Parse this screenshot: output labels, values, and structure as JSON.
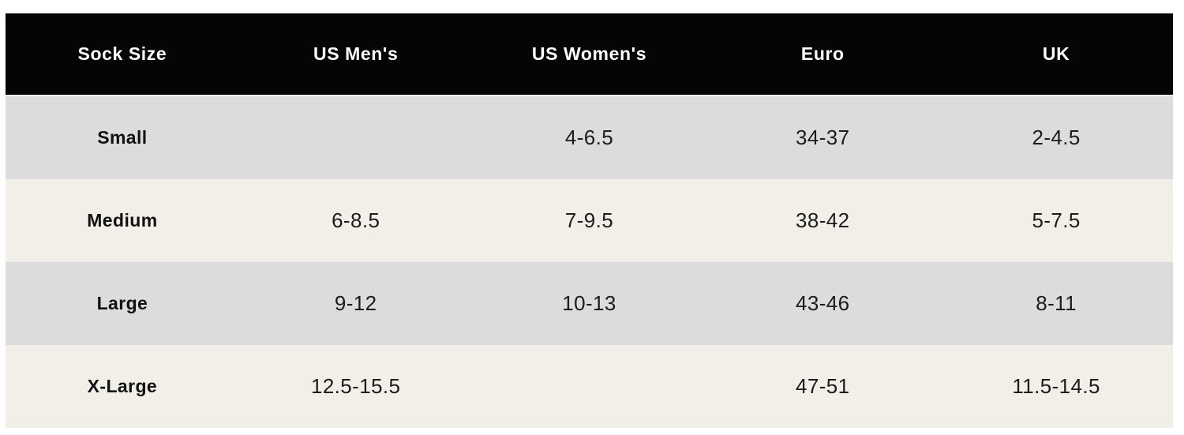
{
  "chart_data": {
    "type": "table",
    "columns": [
      "Sock Size",
      "US Men's",
      "US Women's",
      "Euro",
      "UK"
    ],
    "rows": [
      [
        "Small",
        "",
        "4-6.5",
        "34-37",
        "2-4.5"
      ],
      [
        "Medium",
        "6-8.5",
        "7-9.5",
        "38-42",
        "5-7.5"
      ],
      [
        "Large",
        "9-12",
        "10-13",
        "43-46",
        "8-11"
      ],
      [
        "X-Large",
        "12.5-15.5",
        "",
        "47-51",
        "11.5-14.5"
      ]
    ]
  },
  "colors": {
    "header_bg": "#050505",
    "header_text": "#ffffff",
    "row_alt_bg": "#dcdcdc",
    "row_base_bg": "#f2efe9",
    "label_text": "#111111",
    "value_text": "#1c1c1c",
    "page_bg": "#ffffff"
  }
}
